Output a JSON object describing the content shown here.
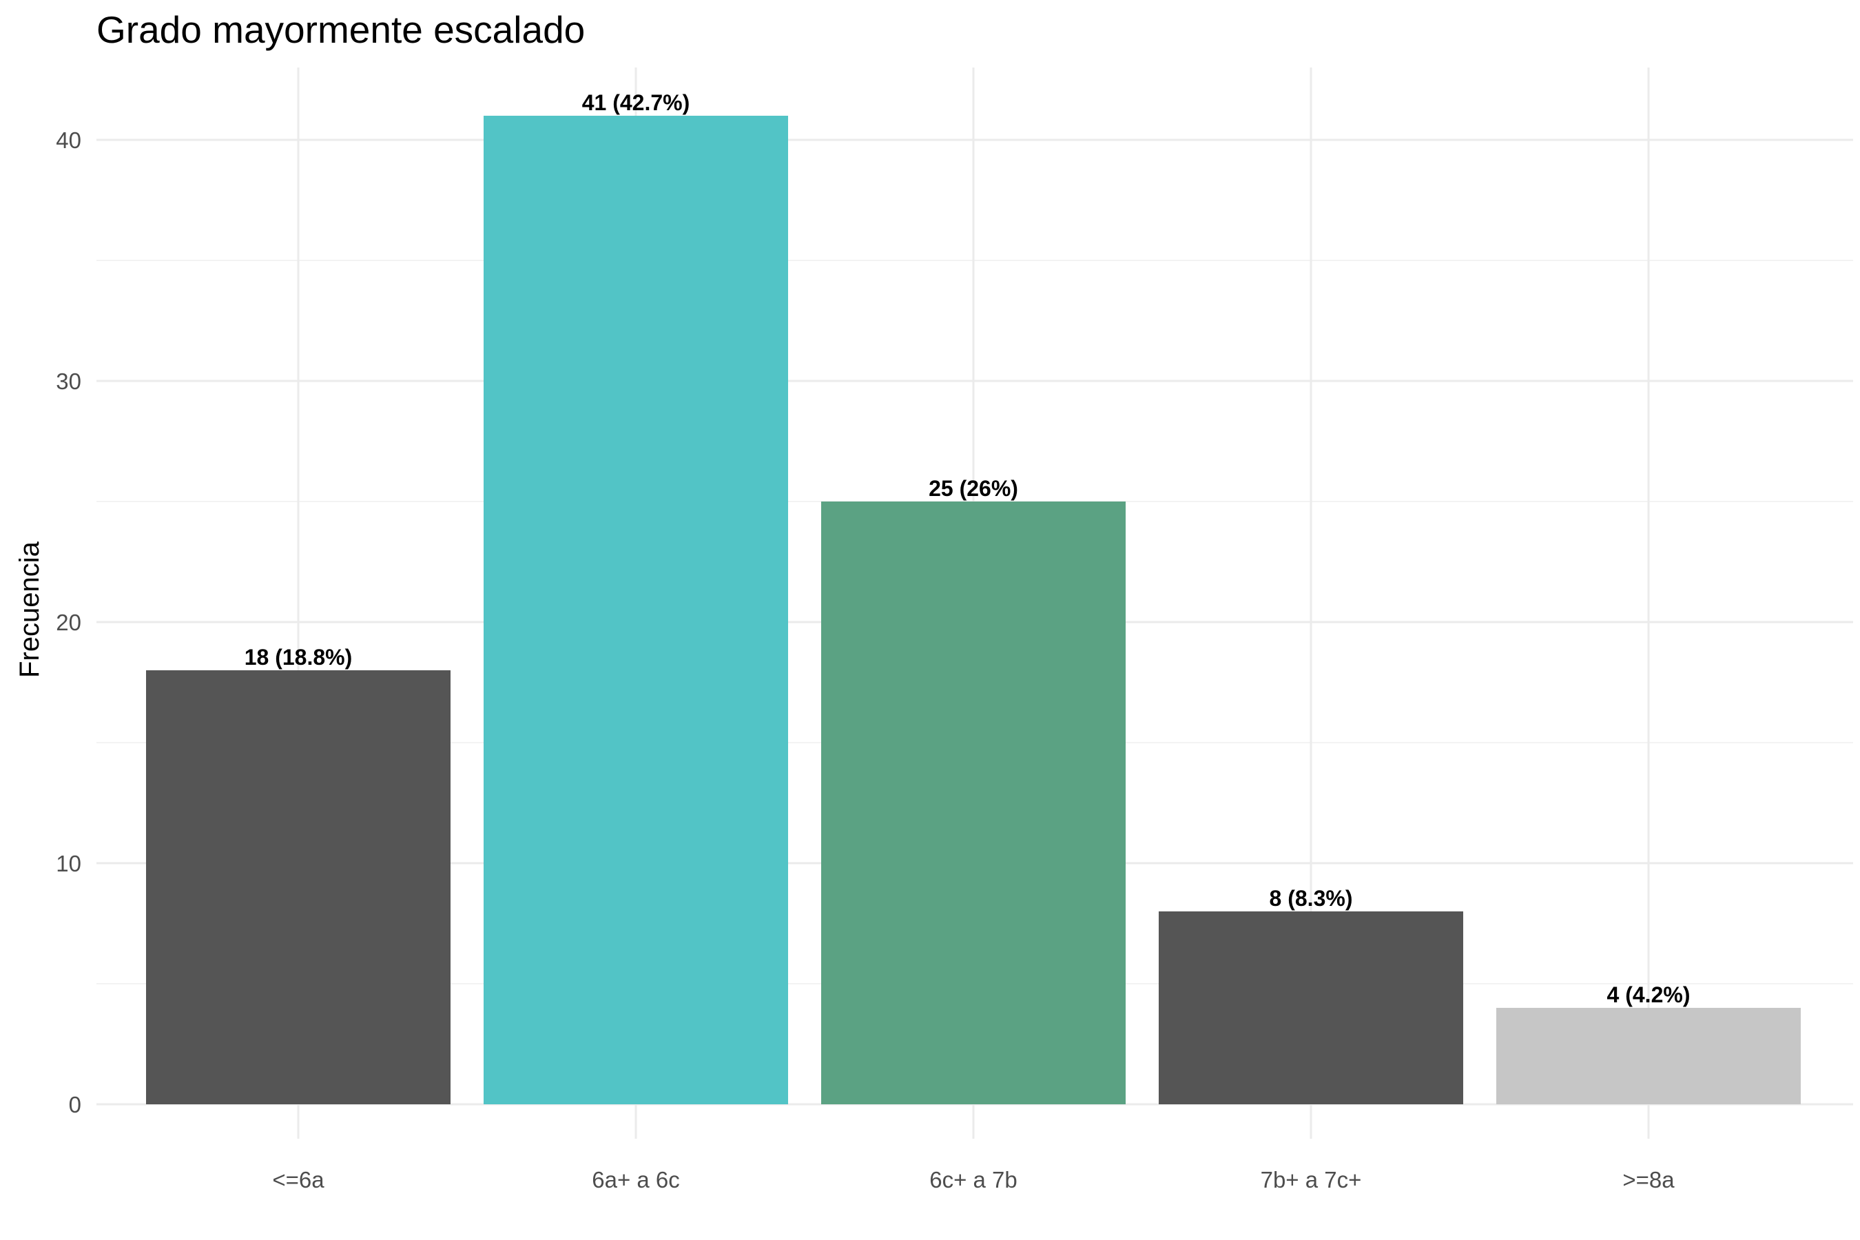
{
  "chart_data": {
    "type": "bar",
    "title": "Grado mayormente escalado",
    "xlabel": "",
    "ylabel": "Frecuencia",
    "categories": [
      "<=6a",
      "6a+ a 6c",
      "6c+ a 7b",
      "7b+ a 7c+",
      ">=8a"
    ],
    "values": [
      18,
      41,
      25,
      8,
      4
    ],
    "data_labels": [
      "18 (18.8%)",
      "41 (42.7%)",
      "25 (26%)",
      "8 (8.3%)",
      "4 (4.2%)"
    ],
    "colors": [
      "#555555",
      "#52c4c6",
      "#5ba283",
      "#555555",
      "#c6c6c6"
    ],
    "ylim": [
      0,
      43
    ],
    "yticks": [
      0,
      10,
      20,
      30,
      40
    ],
    "grid": true,
    "legend": "none"
  }
}
